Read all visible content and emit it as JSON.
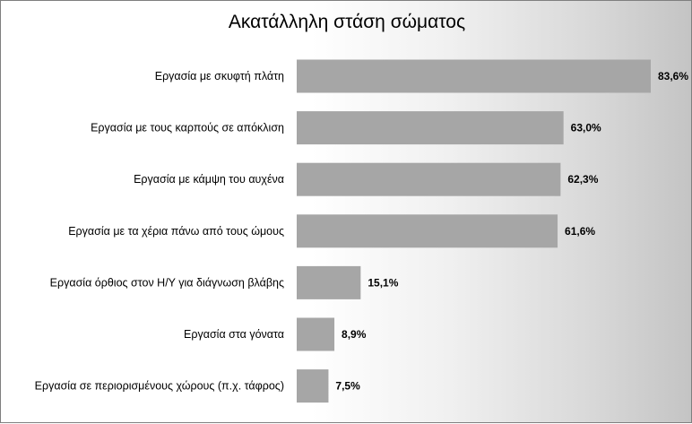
{
  "chart_data": {
    "type": "bar",
    "orientation": "horizontal",
    "title": "Ακατάλληλη στάση σώματος",
    "categories": [
      "Εργασία με σκυφτή πλάτη",
      "Εργασία με τους καρπούς σε απόκλιση",
      "Εργασία με κάμψη του αυχένα",
      "Εργασία με τα χέρια πάνω από τους ώμους",
      "Εργασία όρθιος στον Η/Υ για διάγνωση βλάβης",
      "Εργασία στα γόνατα",
      "Εργασία σε περιορισμένους χώρους (π.χ. τάφρος)"
    ],
    "values": [
      83.6,
      63.0,
      62.3,
      61.6,
      15.1,
      8.9,
      7.5
    ],
    "data_labels": [
      "83,6%",
      "63,0%",
      "62,3%",
      "61,6%",
      "15,1%",
      "8,9%",
      "7,5%"
    ],
    "unit": "%",
    "xlim": [
      0,
      83.6
    ],
    "grid": false,
    "legend": "none",
    "colors": {
      "bar": "#a6a6a6",
      "background_right": "#c4c4c4"
    }
  }
}
